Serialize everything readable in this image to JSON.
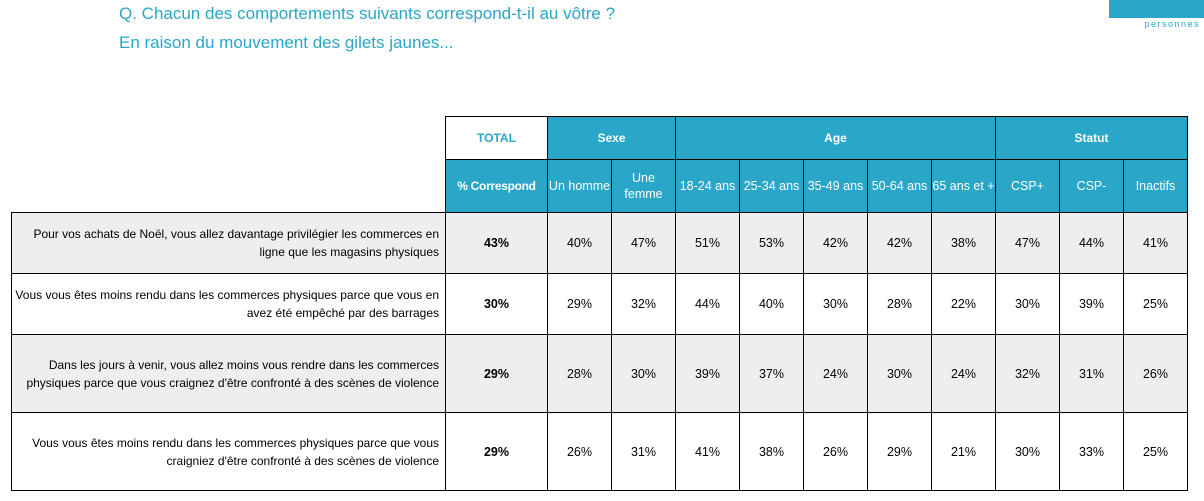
{
  "header": {
    "question": "Q. Chacun des comportements suivants correspond-t-il au vôtre ?",
    "subtitle": "En raison du mouvement des gilets jaunes...",
    "brand_text": "personnes"
  },
  "table": {
    "groups": {
      "total": "TOTAL",
      "sexe": "Sexe",
      "age": "Age",
      "statut": "Statut"
    },
    "subheaders": [
      "% Correspond",
      "Un homme",
      "Une femme",
      "18-24 ans",
      "25-34 ans",
      "35-49 ans",
      "50-64 ans",
      "65 ans et +",
      "CSP+",
      "CSP-",
      "Inactifs"
    ],
    "rows": [
      {
        "label": "Pour vos achats de Noël, vous allez davantage privilégier les commerces en ligne que les magasins physiques",
        "values": [
          "43%",
          "40%",
          "47%",
          "51%",
          "53%",
          "42%",
          "42%",
          "38%",
          "47%",
          "44%",
          "41%"
        ]
      },
      {
        "label": "Vous vous êtes moins rendu dans les commerces physiques parce que vous en avez été empêché par des barrages",
        "values": [
          "30%",
          "29%",
          "32%",
          "44%",
          "40%",
          "30%",
          "28%",
          "22%",
          "30%",
          "39%",
          "25%"
        ]
      },
      {
        "label": "Dans les jours à venir, vous allez moins vous rendre dans les commerces physiques parce que vous craignez d'être confronté à des scènes de violence",
        "values": [
          "29%",
          "28%",
          "30%",
          "39%",
          "37%",
          "24%",
          "30%",
          "24%",
          "32%",
          "31%",
          "26%"
        ]
      },
      {
        "label": "Vous vous êtes moins rendu dans les commerces physiques parce que vous craigniez d'être confronté à des scènes de violence",
        "values": [
          "29%",
          "26%",
          "31%",
          "41%",
          "38%",
          "26%",
          "29%",
          "21%",
          "30%",
          "33%",
          "25%"
        ]
      }
    ]
  }
}
